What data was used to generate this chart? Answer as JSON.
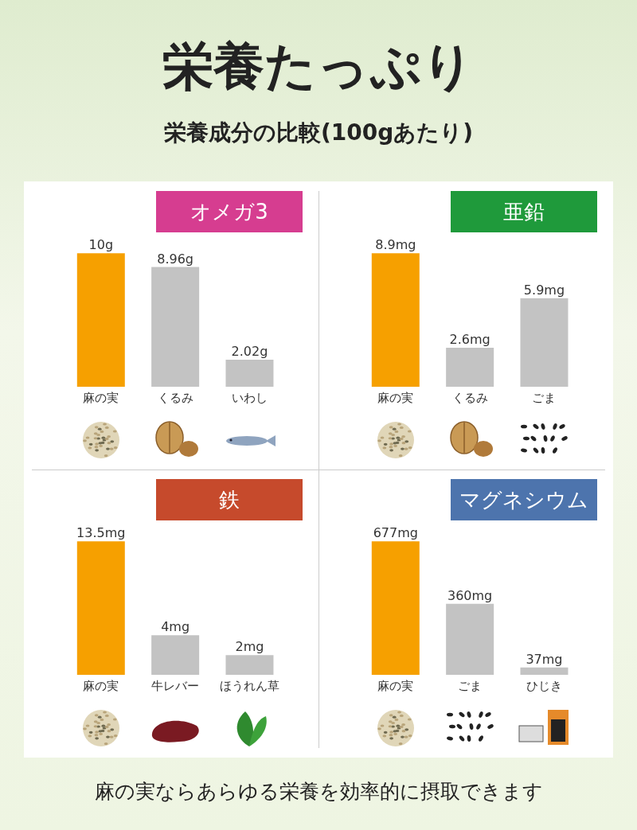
{
  "chart_data": [
    {
      "type": "other",
      "title": "栄養たっぷり",
      "subtitle": "栄養成分の比較(100gあたり)",
      "annotations": [
        "麻の実ならあらゆる栄養を効率的に摂取できます"
      ]
    },
    {
      "type": "bar",
      "title": "オメガ3",
      "categories": [
        "麻の実",
        "くるみ",
        "いわし"
      ],
      "values": [
        10,
        8.96,
        2.02
      ],
      "colors": [
        "#f6a000",
        "#c3c3c3",
        "#c3c3c3"
      ],
      "value_labels": [
        "10g",
        "8.96g",
        "2.02g"
      ]
    },
    {
      "type": "bar",
      "title": "亜鉛",
      "categories": [
        "麻の実",
        "くるみ",
        "ごま"
      ],
      "values": [
        8.9,
        2.6,
        5.9
      ],
      "colors": [
        "#f6a000",
        "#c3c3c3",
        "#c3c3c3"
      ],
      "value_labels": [
        "8.9mg",
        "2.6mg",
        "5.9mg"
      ]
    },
    {
      "type": "bar",
      "title": "鉄",
      "categories": [
        "麻の実",
        "牛レバー",
        "ほうれん草"
      ],
      "values": [
        13.5,
        4,
        2
      ],
      "colors": [
        "#f6a000",
        "#c3c3c3",
        "#c3c3c3"
      ],
      "value_labels": [
        "13.5mg",
        "4mg",
        "2mg"
      ]
    },
    {
      "type": "bar",
      "title": "マグネシウム",
      "categories": [
        "麻の実",
        "ごま",
        "ひじき"
      ],
      "values": [
        677,
        360,
        37
      ],
      "colors": [
        "#f6a000",
        "#c3c3c3",
        "#c3c3c3"
      ],
      "value_labels": [
        "677mg",
        "360mg",
        "37mg"
      ]
    }
  ]
}
